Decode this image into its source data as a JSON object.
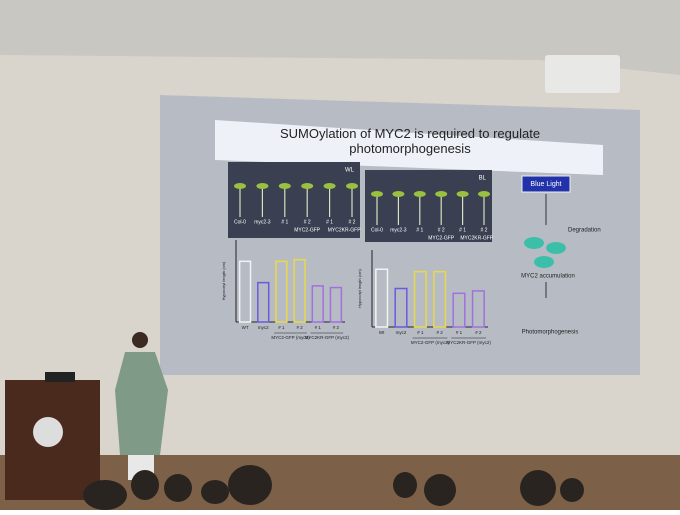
{
  "slide": {
    "title": "SUMOylation of MYC2 is required to regulate photomorphogenesis",
    "photos": [
      {
        "condition": "WL",
        "labels": [
          "Col-0",
          "myc2-3",
          "# 1",
          "# 2",
          "# 1",
          "# 2",
          "MYC2-GFP",
          "MYC2KR-GFP"
        ]
      },
      {
        "condition": "BL",
        "labels": [
          "Col-0",
          "myc2-3",
          "# 1",
          "# 2",
          "# 1",
          "# 2",
          "MYC2-GFP",
          "MYC2KR-GFP"
        ]
      }
    ],
    "charts": [
      {
        "type": "bar",
        "y_label": "Hypocotyl length (cm)",
        "categories": [
          "WT",
          "myc2",
          "# 1",
          "# 2",
          "# 1",
          "# 2"
        ],
        "values": [
          1.85,
          1.2,
          1.85,
          1.9,
          1.1,
          1.05
        ],
        "colors": [
          "#f2f2f2",
          "#6a5adf",
          "#e8d84a",
          "#e8d84a",
          "#a070e0",
          "#a070e0"
        ],
        "ylim": [
          0,
          2.5
        ],
        "groups": [
          "MYC2-GFP (myc2)",
          "MYC2KR-GFP (myc2)"
        ]
      },
      {
        "type": "bar",
        "y_label": "Hypocotyl length (cm)",
        "categories": [
          "Wt",
          "myc2",
          "# 1",
          "# 2",
          "# 1",
          "# 2"
        ],
        "values": [
          2.4,
          1.6,
          2.3,
          2.3,
          1.4,
          1.5
        ],
        "colors": [
          "#f2f2f2",
          "#6a5adf",
          "#e8d84a",
          "#e8d84a",
          "#a070e0",
          "#a070e0"
        ],
        "ylim": [
          0,
          3.2
        ],
        "groups": [
          "MYC2-GFP (myc2)",
          "MYC2KR-GFP (myc2)"
        ]
      }
    ],
    "diagram": {
      "trigger": "Blue Light",
      "degradation": "Degradation",
      "accumulation": "MYC2 accumulation",
      "outcome": "Photomorphogenesis"
    }
  }
}
